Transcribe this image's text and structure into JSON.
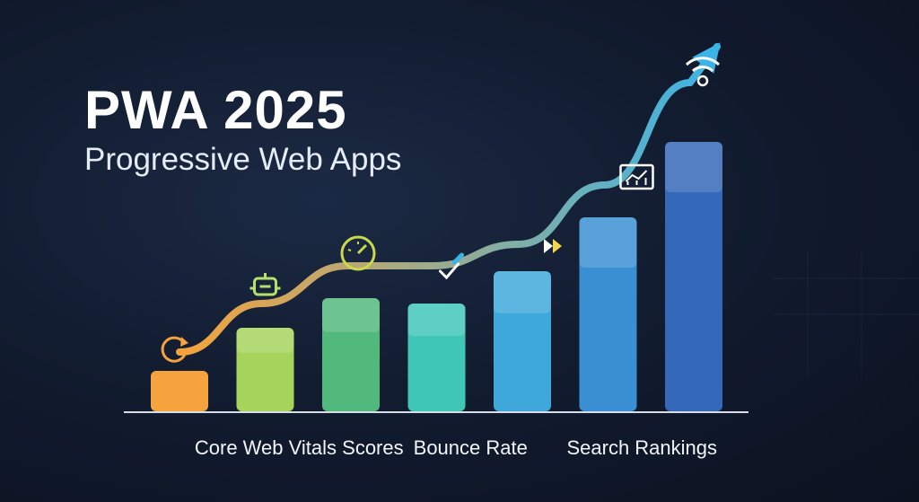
{
  "header": {
    "title": "PWA 2025",
    "subtitle": "Progressive Web Apps"
  },
  "chart_data": {
    "type": "bar",
    "title": "PWA 2025",
    "subtitle": "Progressive Web Apps",
    "xlabel": "",
    "ylabel": "",
    "ylim": [
      0,
      100
    ],
    "grid": false,
    "legend": "none",
    "categories": [
      "",
      "",
      "",
      "",
      "",
      "",
      ""
    ],
    "values": [
      15,
      31,
      42,
      40,
      52,
      72,
      100
    ],
    "category_labels": [
      {
        "text": "Core Web Vitals Scores",
        "at_bar": 1.5
      },
      {
        "text": "Bounce Rate",
        "at_bar": 3.5
      },
      {
        "text": "Search Rankings",
        "at_bar": 5.5
      }
    ],
    "trend_line": {
      "values": [
        22,
        40,
        54,
        54,
        62,
        84,
        122
      ]
    },
    "colors": {
      "bars": [
        "#f5a33c",
        "#a6d45b",
        "#52b97d",
        "#40c6b7",
        "#3fa8da",
        "#3a8fd2",
        "#3468b8"
      ],
      "trend_start": "#f5a33c",
      "trend_end": "#3ab4e6",
      "axis": "#d8dee8"
    },
    "icons": [
      "refresh-icon",
      "robot-icon",
      "speedometer-icon",
      "checkmark-icon",
      "fast-forward-icon",
      "analytics-icon",
      "wifi-icon"
    ]
  }
}
